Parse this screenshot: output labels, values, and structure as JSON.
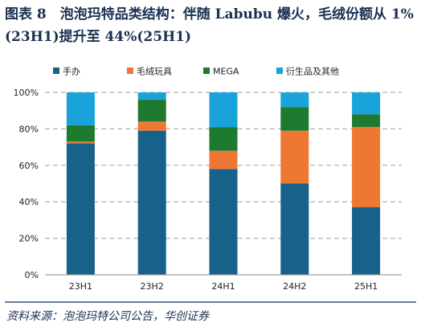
{
  "title": "图表 8　泡泡玛特品类结构：伴随 Labubu 爆火，毛绒份额从 1%(23H1)提升至 44%(25H1)",
  "source": "资料来源：泡泡玛特公司公告，华创证券",
  "chart_data": {
    "type": "bar",
    "stacked": true,
    "categories": [
      "23H1",
      "23H2",
      "24H1",
      "24H2",
      "25H1"
    ],
    "series": [
      {
        "name": "手办",
        "color": "#17618b",
        "values": [
          72,
          79,
          58,
          50,
          37
        ]
      },
      {
        "name": "毛绒玩具",
        "color": "#ee7733",
        "values": [
          1,
          5,
          10,
          29,
          44
        ]
      },
      {
        "name": "MEGA",
        "color": "#1e7a2e",
        "values": [
          9,
          12,
          13,
          13,
          7
        ]
      },
      {
        "name": "衍生品及其他",
        "color": "#1aa3db",
        "values": [
          18,
          4,
          19,
          8,
          12
        ]
      }
    ],
    "yticks": [
      "0%",
      "20%",
      "40%",
      "60%",
      "80%",
      "100%"
    ],
    "ylim": [
      0,
      100
    ],
    "grid": true,
    "legend": "top"
  }
}
